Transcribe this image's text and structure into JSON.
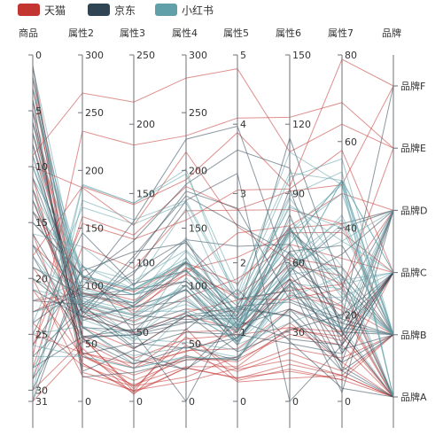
{
  "chart_data": {
    "type": "parallel",
    "legend": {
      "placement": "top-left",
      "items": [
        {
          "name": "天猫",
          "color": "#c23531"
        },
        {
          "name": "京东",
          "color": "#2f4554"
        },
        {
          "name": "小红书",
          "color": "#61a0a8"
        }
      ]
    },
    "axes": [
      {
        "name": "商品",
        "type": "value",
        "inverse": true,
        "min": 0,
        "max": 31,
        "ticks": [
          0,
          5,
          10,
          15,
          20,
          25,
          30
        ]
      },
      {
        "name": "属性2",
        "type": "value",
        "min": 0,
        "max": 300,
        "ticks": [
          0,
          50,
          100,
          150,
          200,
          250,
          300
        ]
      },
      {
        "name": "属性3",
        "type": "value",
        "min": 0,
        "max": 250,
        "ticks": [
          0,
          50,
          100,
          150,
          200,
          250
        ]
      },
      {
        "name": "属性4",
        "type": "value",
        "min": 0,
        "max": 300,
        "ticks": [
          0,
          50,
          100,
          150,
          200,
          250,
          300
        ]
      },
      {
        "name": "属性5",
        "type": "value",
        "min": 0,
        "max": 5,
        "ticks": [
          0,
          1,
          2,
          3,
          4,
          5
        ]
      },
      {
        "name": "属性6",
        "type": "value",
        "min": 0,
        "max": 150,
        "ticks": [
          0,
          30,
          60,
          90,
          120,
          150
        ]
      },
      {
        "name": "属性7",
        "type": "value",
        "min": 0,
        "max": 80,
        "ticks": [
          0,
          20,
          40,
          60,
          80
        ]
      },
      {
        "name": "品牌",
        "type": "category",
        "categories": [
          "品牌A",
          "品牌B",
          "品牌C",
          "品牌D",
          "品牌E",
          "品牌F"
        ]
      }
    ],
    "series": [
      {
        "name": "天猫",
        "color": "#c23531",
        "data": [
          [
            1,
            55,
            9,
            56,
            0.46,
            18,
            6,
            "品牌A"
          ],
          [
            2,
            25,
            11,
            21,
            0.65,
            34,
            9,
            "品牌A"
          ],
          [
            3,
            56,
            7,
            63,
            0.3,
            14,
            5,
            "品牌B"
          ],
          [
            4,
            33,
            7,
            29,
            0.33,
            16,
            6,
            "品牌A"
          ],
          [
            5,
            42,
            24,
            44,
            0.76,
            40,
            16,
            "品牌C"
          ],
          [
            6,
            82,
            58,
            90,
            1.77,
            68,
            33,
            "品牌C"
          ],
          [
            7,
            74,
            49,
            77,
            1.46,
            48,
            27,
            "品牌D"
          ],
          [
            8,
            78,
            55,
            80,
            1.29,
            59,
            29,
            "品牌B"
          ],
          [
            9,
            267,
            216,
            280,
            4.8,
            108,
            64,
            "品牌E"
          ],
          [
            10,
            185,
            127,
            216,
            2.52,
            61,
            27,
            "品牌A"
          ],
          [
            11,
            39,
            19,
            38,
            0.57,
            31,
            15,
            "品牌A"
          ],
          [
            12,
            41,
            11,
            40,
            0.43,
            21,
            7,
            "品牌C"
          ],
          [
            13,
            64,
            38,
            74,
            1.04,
            46,
            22,
            "品牌A"
          ],
          [
            14,
            108,
            79,
            120,
            1.7,
            75,
            41,
            "品牌B"
          ],
          [
            15,
            108,
            63,
            116,
            1.48,
            44,
            26,
            "品牌E"
          ],
          [
            16,
            33,
            6,
            29,
            0.34,
            13,
            5,
            "品牌A"
          ],
          [
            17,
            94,
            66,
            110,
            1.54,
            62,
            31,
            "品牌B"
          ],
          [
            18,
            186,
            142,
            192,
            3.88,
            93,
            79,
            "品牌F"
          ],
          [
            19,
            57,
            31,
            54,
            0.96,
            32,
            14,
            "品牌C"
          ],
          [
            20,
            22,
            8,
            17,
            0.48,
            23,
            10,
            "品牌B"
          ],
          [
            21,
            39,
            15,
            36,
            0.61,
            29,
            13,
            "品牌A"
          ],
          [
            22,
            94,
            69,
            114,
            2.08,
            73,
            39,
            "品牌C"
          ],
          [
            23,
            99,
            73,
            110,
            2.43,
            76,
            48,
            "品牌D"
          ],
          [
            24,
            31,
            12,
            30,
            0.5,
            32,
            16,
            "品牌A"
          ],
          [
            25,
            42,
            27,
            43,
            1,
            53,
            22,
            "品牌B"
          ],
          [
            26,
            154,
            117,
            157,
            3.05,
            92,
            58,
            "品牌C"
          ],
          [
            27,
            234,
            185,
            230,
            4.09,
            123,
            69,
            "品牌E"
          ],
          [
            28,
            160,
            120,
            186,
            2.77,
            91,
            50,
            "品牌F"
          ],
          [
            29,
            134,
            96,
            165,
            2.76,
            83,
            41,
            "品牌D"
          ],
          [
            30,
            52,
            24,
            60,
            1.03,
            50,
            21,
            "品牌A"
          ],
          [
            31,
            46,
            5,
            49,
            0.28,
            10,
            6,
            "品牌B"
          ]
        ]
      },
      {
        "name": "京东",
        "color": "#2f4554",
        "data": [
          [
            1,
            26,
            37,
            27,
            1.163,
            27,
            13,
            "品牌C"
          ],
          [
            2,
            85,
            62,
            71,
            1.195,
            60,
            8,
            "品牌A"
          ],
          [
            3,
            78,
            38,
            74,
            1.363,
            37,
            7,
            "品牌B"
          ],
          [
            4,
            21,
            21,
            36,
            0.634,
            40,
            9,
            "品牌D"
          ],
          [
            5,
            41,
            42,
            46,
            0.915,
            81,
            13,
            "品牌C"
          ],
          [
            6,
            56,
            52,
            69,
            1.067,
            92,
            16,
            "品牌A"
          ],
          [
            7,
            64,
            30,
            28,
            0.924,
            51,
            2,
            "品牌D"
          ],
          [
            8,
            55,
            48,
            74,
            1.236,
            75,
            26,
            "品牌A"
          ],
          [
            9,
            76,
            85,
            113,
            1.237,
            114,
            27,
            "品牌B"
          ],
          [
            10,
            91,
            81,
            104,
            1.041,
            56,
            40,
            "品牌D"
          ],
          [
            11,
            84,
            39,
            60,
            0.964,
            25,
            11,
            "品牌C"
          ],
          [
            12,
            64,
            51,
            101,
            0.862,
            58,
            23,
            "品牌D"
          ],
          [
            13,
            70,
            69,
            120,
            1.198,
            65,
            36,
            "品牌B"
          ],
          [
            14,
            77,
            105,
            178,
            2.549,
            64,
            16,
            "品牌C"
          ],
          [
            15,
            109,
            68,
            87,
            0.996,
            74,
            29,
            "品牌A"
          ],
          [
            16,
            73,
            68,
            97,
            0.905,
            51,
            34,
            "品牌D"
          ],
          [
            17,
            54,
            27,
            47,
            0.592,
            53,
            12,
            "品牌B"
          ],
          [
            18,
            51,
            61,
            97,
            0.811,
            65,
            19,
            "品牌F"
          ],
          [
            19,
            91,
            71,
            121,
            1.374,
            43,
            18,
            "品牌C"
          ],
          [
            20,
            73,
            102,
            182,
            2.787,
            44,
            19,
            "品牌B"
          ],
          [
            21,
            73,
            50,
            76,
            0.717,
            31,
            20,
            "品牌C"
          ],
          [
            22,
            84,
            94,
            140,
            2.238,
            68,
            18,
            "品牌B"
          ],
          [
            23,
            93,
            77,
            104,
            1.165,
            53,
            7,
            "品牌A"
          ],
          [
            24,
            99,
            130,
            227,
            3.97,
            55,
            15,
            "品牌D"
          ],
          [
            25,
            146,
            84,
            139,
            1.094,
            40,
            17,
            "品牌B"
          ],
          [
            26,
            113,
            108,
            137,
            1.481,
            48,
            15,
            "品牌C"
          ],
          [
            27,
            81,
            48,
            62,
            1.619,
            26,
            3,
            "品牌A"
          ],
          [
            28,
            56,
            48,
            68,
            1.336,
            37,
            9,
            "品牌B"
          ],
          [
            29,
            82,
            92,
            174,
            3.29,
            0,
            13,
            "品牌D"
          ],
          [
            30,
            106,
            116,
            188,
            3.628,
            101,
            16,
            "品牌B"
          ],
          [
            31,
            118,
            50,
            0,
            1.383,
            76,
            11,
            "品牌C"
          ]
        ]
      },
      {
        "name": "小红书",
        "color": "#61a0a8",
        "data": [
          [
            1,
            91,
            45,
            125,
            0.82,
            34,
            23,
            "品牌A"
          ],
          [
            2,
            65,
            27,
            78,
            0.86,
            45,
            29,
            "品牌B"
          ],
          [
            3,
            83,
            60,
            84,
            1.09,
            73,
            27,
            "品牌C"
          ],
          [
            4,
            109,
            81,
            121,
            1.28,
            68,
            51,
            "品牌B"
          ],
          [
            5,
            106,
            77,
            114,
            1.07,
            55,
            51,
            "品牌A"
          ],
          [
            6,
            109,
            81,
            121,
            1.28,
            68,
            51,
            "品牌B"
          ],
          [
            7,
            106,
            77,
            114,
            1.07,
            55,
            51,
            "品牌C"
          ],
          [
            8,
            89,
            65,
            78,
            0.86,
            51,
            26,
            "品牌B"
          ],
          [
            9,
            53,
            33,
            47,
            0.64,
            50,
            17,
            "品牌D"
          ],
          [
            10,
            80,
            55,
            80,
            1.01,
            75,
            24,
            "品牌B"
          ],
          [
            11,
            117,
            81,
            124,
            1.03,
            45,
            24,
            "品牌C"
          ],
          [
            12,
            99,
            71,
            142,
            1.1,
            62,
            42,
            "品牌B"
          ],
          [
            13,
            95,
            69,
            130,
            1.28,
            74,
            50,
            "品牌A"
          ],
          [
            14,
            116,
            87,
            131,
            1.47,
            84,
            40,
            "品牌B"
          ],
          [
            15,
            108,
            80,
            121,
            1.3,
            85,
            37,
            "品牌D"
          ],
          [
            16,
            134,
            83,
            167,
            1.16,
            57,
            43,
            "品牌B"
          ],
          [
            17,
            79,
            43,
            107,
            1.05,
            59,
            37,
            "品牌C"
          ],
          [
            18,
            71,
            46,
            89,
            0.86,
            64,
            25,
            "品牌B"
          ],
          [
            19,
            97,
            71,
            113,
            1.17,
            88,
            31,
            "品牌A"
          ],
          [
            20,
            84,
            57,
            91,
            0.85,
            55,
            31,
            "品牌B"
          ],
          [
            21,
            87,
            63,
            101,
            0.9,
            56,
            41,
            "品牌D"
          ],
          [
            22,
            104,
            77,
            119,
            1.09,
            73,
            48,
            "品牌B"
          ],
          [
            23,
            87,
            62,
            100,
            1,
            72,
            28,
            "品牌C"
          ],
          [
            24,
            168,
            128,
            172,
            1.49,
            97,
            56,
            "品牌B"
          ],
          [
            25,
            65,
            45,
            51,
            0.74,
            39,
            17,
            "品牌A"
          ],
          [
            26,
            39,
            24,
            38,
            0.61,
            47,
            17,
            "品牌B"
          ],
          [
            27,
            39,
            24,
            39,
            0.59,
            50,
            19,
            "品牌D"
          ],
          [
            28,
            93,
            68,
            96,
            1.05,
            79,
            29,
            "品牌B"
          ],
          [
            29,
            188,
            143,
            197,
            1.66,
            99,
            51,
            "品牌C"
          ],
          [
            30,
            174,
            131,
            174,
            1.55,
            108,
            50,
            "品牌B"
          ],
          [
            31,
            187,
            143,
            201,
            1.39,
            89,
            53,
            "品牌A"
          ]
        ]
      }
    ]
  }
}
